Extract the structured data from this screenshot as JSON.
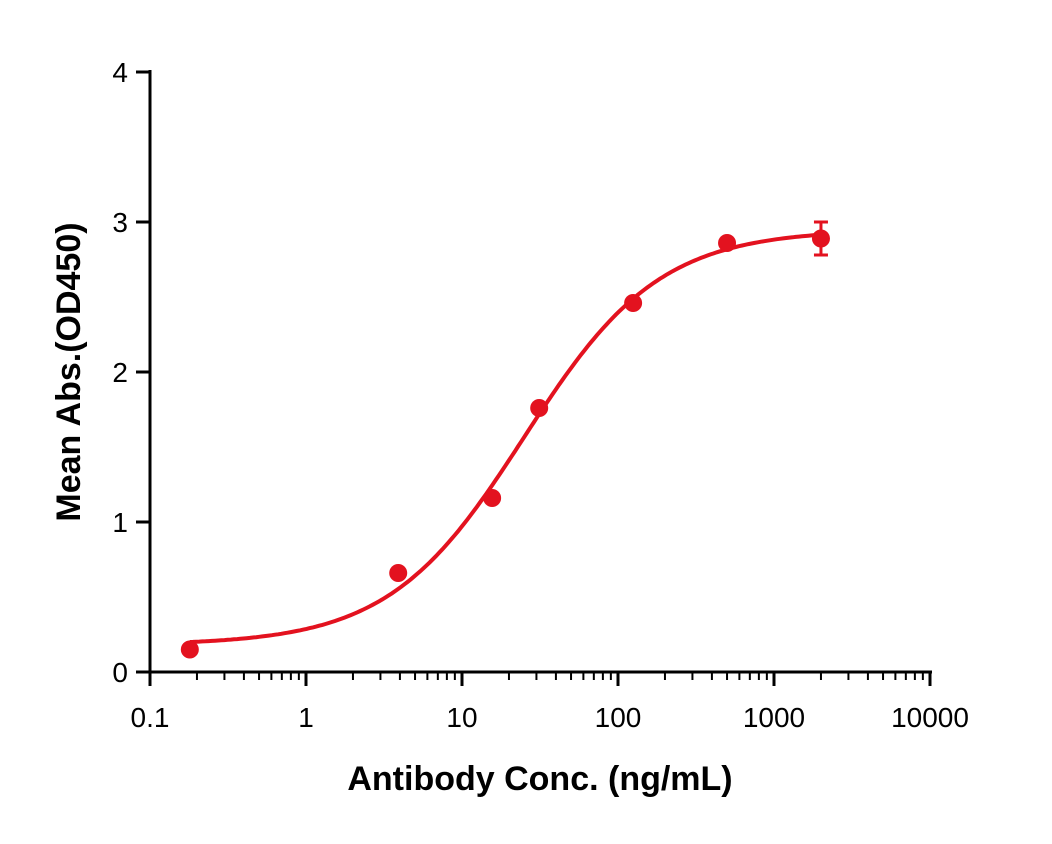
{
  "chart_data": {
    "type": "scatter",
    "title": "",
    "xlabel": "Antibody Conc. (ng/mL)",
    "ylabel": "Mean Abs.(OD450)",
    "xscale": "log",
    "xlim": [
      0.1,
      10000
    ],
    "ylim": [
      0,
      4
    ],
    "xticks": [
      "0.1",
      "1",
      "10",
      "100",
      "1000",
      "10000"
    ],
    "xtick_values": [
      0.1,
      1,
      10,
      100,
      1000,
      10000
    ],
    "yticks": [
      "0",
      "1",
      "2",
      "3",
      "4"
    ],
    "ytick_values": [
      0,
      1,
      2,
      3,
      4
    ],
    "grid": false,
    "color": "#e3121f",
    "series": [
      {
        "x": [
          0.18,
          3.9,
          15.6,
          31.25,
          125,
          500,
          2000
        ],
        "y": [
          0.15,
          0.66,
          1.16,
          1.76,
          2.46,
          2.86,
          2.89
        ],
        "error": [
          0,
          0,
          0,
          0,
          0,
          0,
          0.11
        ]
      }
    ],
    "fit": {
      "model": "4PL",
      "bottom": 0.18,
      "top": 2.95,
      "ec50": 25,
      "hill": 1.0
    }
  }
}
